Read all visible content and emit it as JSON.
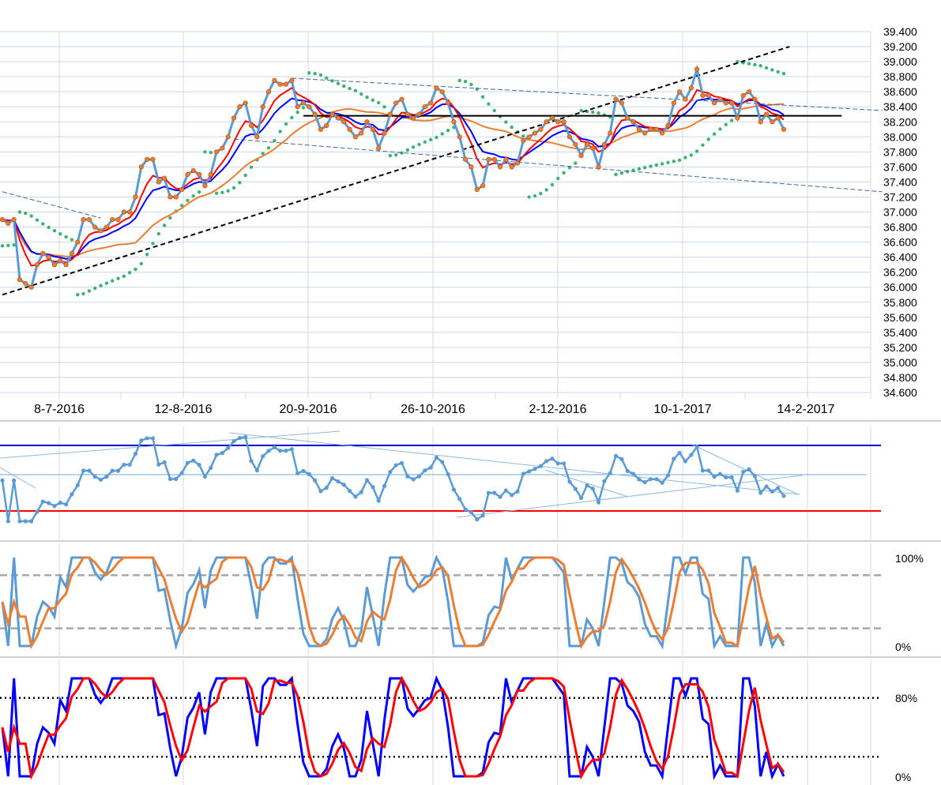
{
  "chart_data": [
    {
      "panel": "price",
      "type": "line",
      "ylim": [
        34.6,
        39.4
      ],
      "yticks": [
        "39.400",
        "39.200",
        "39.000",
        "38.800",
        "38.600",
        "38.400",
        "38.200",
        "38.000",
        "37.800",
        "37.600",
        "37.400",
        "37.200",
        "37.000",
        "36.800",
        "36.600",
        "36.400",
        "36.200",
        "36.000",
        "35.800",
        "35.600",
        "35.400",
        "35.200",
        "35.000",
        "34.800",
        "34.600"
      ],
      "x_labels": [
        "8-7-2016",
        "12-8-2016",
        "20-9-2016",
        "26-10-2016",
        "2-12-2016",
        "10-1-2017",
        "14-2-2017"
      ],
      "grid": true,
      "series": [
        {
          "role": "price",
          "color": "#5b9bd5",
          "marker_color": "#ed7d31",
          "values": [
            36.9,
            36.85,
            36.9,
            36.1,
            36.05,
            36.0,
            36.3,
            36.45,
            36.4,
            36.3,
            36.35,
            36.3,
            36.45,
            36.6,
            36.9,
            36.9,
            36.8,
            36.75,
            36.8,
            36.9,
            36.9,
            37.0,
            37.0,
            37.2,
            37.6,
            37.7,
            37.7,
            37.4,
            37.45,
            37.2,
            37.2,
            37.3,
            37.5,
            37.55,
            37.5,
            37.35,
            37.5,
            37.8,
            37.85,
            38.0,
            38.25,
            38.4,
            38.45,
            38.15,
            38.0,
            38.4,
            38.6,
            38.75,
            38.7,
            38.7,
            38.75,
            38.4,
            38.45,
            38.4,
            38.3,
            38.1,
            38.15,
            38.3,
            38.25,
            38.2,
            38.1,
            38.0,
            38.05,
            38.2,
            38.1,
            37.85,
            38.05,
            38.3,
            38.45,
            38.5,
            38.3,
            38.25,
            38.3,
            38.4,
            38.45,
            38.65,
            38.6,
            38.45,
            38.2,
            38.0,
            37.7,
            37.6,
            37.3,
            37.35,
            37.7,
            37.7,
            37.6,
            37.7,
            37.6,
            37.65,
            37.95,
            38.0,
            38.05,
            38.1,
            38.2,
            38.25,
            38.2,
            38.2,
            38.0,
            37.9,
            37.75,
            37.9,
            37.85,
            37.6,
            37.9,
            38.05,
            38.5,
            38.45,
            38.25,
            38.2,
            38.1,
            38.05,
            38.1,
            38.1,
            38.05,
            38.15,
            38.45,
            38.6,
            38.5,
            38.65,
            38.9,
            38.55,
            38.55,
            38.45,
            38.5,
            38.45,
            38.45,
            38.25,
            38.55,
            38.6,
            38.5,
            38.2,
            38.3,
            38.2,
            38.25,
            38.1
          ]
        },
        {
          "role": "average-red",
          "color": "#ff0000"
        },
        {
          "role": "average-blue",
          "color": "#0000ff"
        },
        {
          "role": "average-orange",
          "color": "#ed7d31"
        },
        {
          "role": "parabolic-dots",
          "color": "#3cb371"
        }
      ],
      "lines": [
        {
          "style": "dashed-black",
          "from": [
            0,
            35.9
          ],
          "to": [
            136,
            39.2
          ]
        },
        {
          "style": "solid-black",
          "from": [
            52,
            38.28
          ],
          "to": [
            145,
            38.28
          ]
        },
        {
          "style": "dashed-blue",
          "from": [
            0,
            37.27
          ],
          "to": [
            17,
            36.92
          ]
        },
        {
          "style": "dashed-blue",
          "from": [
            50,
            38.78
          ],
          "to": [
            152,
            38.35
          ]
        },
        {
          "style": "dashed-blue",
          "from": [
            40,
            37.97
          ],
          "to": [
            152,
            37.27
          ]
        }
      ]
    },
    {
      "panel": "oscillator-1",
      "type": "line",
      "series": [
        {
          "color": "#5b9bd5"
        }
      ],
      "levels": [
        {
          "color": "#0000c8"
        },
        {
          "color": "#ff0000"
        },
        {
          "color": "#6fa8dc"
        }
      ]
    },
    {
      "panel": "oscillator-2",
      "type": "line",
      "ylim": [
        0,
        100
      ],
      "tick_labels": [
        "100%",
        "0%"
      ],
      "series": [
        {
          "color": "#5b9bd5"
        },
        {
          "color": "#ed7d31"
        }
      ],
      "levels": [
        {
          "value": 80,
          "style": "dashed-gray"
        },
        {
          "value": 20,
          "style": "dashed-gray"
        }
      ]
    },
    {
      "panel": "oscillator-3",
      "type": "line",
      "ylim": [
        0,
        100
      ],
      "tick_labels": [
        "80%",
        "0%"
      ],
      "series": [
        {
          "color": "#0000ff"
        },
        {
          "color": "#ff0000"
        }
      ],
      "levels": [
        {
          "value": 80,
          "style": "dotted-black"
        },
        {
          "value": 20,
          "style": "dotted-black"
        }
      ]
    }
  ]
}
